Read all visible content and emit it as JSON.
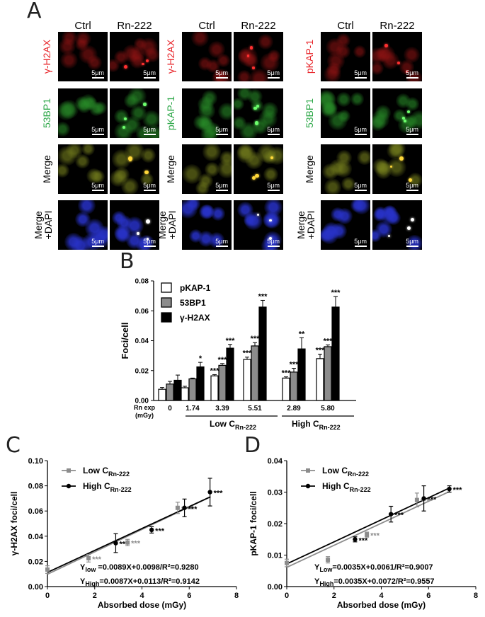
{
  "panelA": {
    "letter": "A",
    "col_ctrl": "Ctrl",
    "col_rn": "Rn-222",
    "scale_label": "5μm",
    "groups": [
      {
        "rows": [
          {
            "label": "γ-H2AX",
            "color": "#e8252a"
          },
          {
            "label": "53BP1",
            "color": "#2fa84a"
          },
          {
            "label": "Merge",
            "color": "#000000"
          },
          {
            "label": "Merge+DAPI",
            "l1": "Merge",
            "l2": "+DAPI",
            "color": "#000000"
          }
        ]
      },
      {
        "rows": [
          {
            "label": "γ-H2AX",
            "color": "#e8252a"
          },
          {
            "label": "pKAP-1",
            "color": "#2fa84a"
          },
          {
            "label": "Merge",
            "color": "#000000"
          },
          {
            "label": "Merge+DAPI",
            "l1": "Merge",
            "l2": "+DAPI",
            "color": "#000000"
          }
        ]
      },
      {
        "rows": [
          {
            "label": "pKAP-1",
            "color": "#e8252a"
          },
          {
            "label": "53BP1",
            "color": "#2fa84a"
          },
          {
            "label": "Merge",
            "color": "#000000"
          },
          {
            "label": "Merge+DAPI",
            "l1": "Merge",
            "l2": "+DAPI",
            "color": "#000000"
          }
        ]
      }
    ]
  },
  "panelB": {
    "letter": "B",
    "legend": [
      "pKAP-1",
      "53BP1",
      "γ-H2AX"
    ],
    "rn_exp_label_1": "Rn exp",
    "rn_exp_label_2": "(mGy)",
    "low_group": "Low C",
    "high_group": "High C",
    "group_sub": "Rn-222"
  },
  "panelC": {
    "letter": "C",
    "legend_low": "Low C",
    "legend_high": "High C",
    "legend_sub": "Rn-222",
    "eq_low_prefix": "Y",
    "eq_low_sub": "low",
    "eq_low": " =0.0089X+0.0098/R²=0.9280",
    "eq_high_prefix": "Y",
    "eq_high_sub": "High",
    "eq_high": "=0.0087X+0.0113/R²=0.9142"
  },
  "panelD": {
    "letter": "D",
    "legend_low": "Low C",
    "legend_high": "High C",
    "legend_sub": "Rn-222",
    "eq_low_prefix": "Y",
    "eq_low_sub": "Low",
    "eq_low": "=0.0035X+0.0061/R²=0.9007",
    "eq_high_prefix": "Y",
    "eq_high_sub": "High",
    "eq_high": "=0.0035X+0.0072/R²=0.9557"
  },
  "chart_data": [
    {
      "type": "bar",
      "ylabel": "Foci/cell",
      "ylim": [
        0,
        0.08
      ],
      "yticks": [
        "0.00",
        "0.02",
        "0.04",
        "0.06",
        "0.08"
      ],
      "categories": [
        "0",
        "1.74",
        "3.39",
        "5.51",
        "2.89",
        "5.80"
      ],
      "series": [
        {
          "name": "pKAP-1",
          "color": "#ffffff",
          "values": [
            0.0075,
            0.0085,
            0.0165,
            0.0275,
            0.015,
            0.028
          ],
          "errors": [
            0.0012,
            0.001,
            0.0008,
            0.0015,
            0.0008,
            0.003
          ],
          "sig": [
            "",
            "",
            "***",
            "***",
            "***",
            "***"
          ]
        },
        {
          "name": "53BP1",
          "color": "#8c8c8c",
          "values": [
            0.011,
            0.0145,
            0.0235,
            0.0365,
            0.019,
            0.036
          ],
          "errors": [
            0.0018,
            0.0005,
            0.0012,
            0.0022,
            0.0025,
            0.0012
          ],
          "sig": [
            "",
            "",
            "***",
            "***",
            "***",
            "***"
          ]
        },
        {
          "name": "γ-H2AX",
          "color": "#000000",
          "values": [
            0.0135,
            0.0225,
            0.035,
            0.0625,
            0.0345,
            0.0625
          ],
          "errors": [
            0.0035,
            0.003,
            0.0025,
            0.0045,
            0.0075,
            0.007
          ],
          "sig": [
            "",
            "*",
            "***",
            "***",
            "**",
            "***"
          ]
        }
      ]
    },
    {
      "type": "scatter",
      "ylabel": "γ-H2AX foci/cell",
      "xlabel": "Absorbed dose (mGy)",
      "xlim": [
        0,
        8
      ],
      "ylim": [
        0,
        0.1
      ],
      "xticks": [
        "0",
        "2",
        "4",
        "6",
        "8"
      ],
      "yticks": [
        "0.00",
        "0.02",
        "0.04",
        "0.06",
        "0.08",
        "0.10"
      ],
      "series": [
        {
          "name": "Low C Rn-222",
          "color": "#8c8c8c",
          "x": [
            0,
            1.74,
            3.39,
            5.51
          ],
          "y": [
            0.0135,
            0.0225,
            0.035,
            0.0625
          ],
          "err": [
            0.003,
            0.003,
            0.0025,
            0.0045
          ],
          "sig": [
            "",
            "***",
            "***",
            "****"
          ]
        },
        {
          "name": "High C Rn-222",
          "color": "#000000",
          "x": [
            2.89,
            4.41,
            5.8,
            6.88
          ],
          "y": [
            0.0345,
            0.045,
            0.0625,
            0.075
          ],
          "err": [
            0.0075,
            0.0025,
            0.007,
            0.011
          ],
          "sig": [
            "**",
            "***",
            "***",
            "***"
          ]
        }
      ],
      "fits": [
        {
          "slope": 0.0089,
          "intercept": 0.0098,
          "color": "#8c8c8c"
        },
        {
          "slope": 0.0087,
          "intercept": 0.0113,
          "color": "#000000"
        }
      ]
    },
    {
      "type": "scatter",
      "ylabel": "pKAP-1 foci/cell",
      "xlabel": "Absorbed dose (mGy)",
      "xlim": [
        0,
        8
      ],
      "ylim": [
        0,
        0.04
      ],
      "xticks": [
        "0",
        "2",
        "4",
        "6",
        "8"
      ],
      "yticks": [
        "0.00",
        "0.01",
        "0.02",
        "0.03",
        "0.04"
      ],
      "series": [
        {
          "name": "Low C Rn-222",
          "color": "#8c8c8c",
          "x": [
            0,
            1.74,
            3.39,
            5.51
          ],
          "y": [
            0.0075,
            0.0085,
            0.0165,
            0.0275
          ],
          "err": [
            0.0012,
            0.001,
            0.0008,
            0.0022
          ],
          "sig": [
            "",
            "",
            "***",
            "****"
          ]
        },
        {
          "name": "High C Rn-222",
          "color": "#000000",
          "x": [
            2.89,
            4.41,
            5.8,
            6.88
          ],
          "y": [
            0.015,
            0.023,
            0.028,
            0.031
          ],
          "err": [
            0.0008,
            0.0025,
            0.004,
            0.001
          ],
          "sig": [
            "***",
            "***",
            "***",
            "***"
          ]
        }
      ],
      "fits": [
        {
          "slope": 0.0035,
          "intercept": 0.0061,
          "color": "#8c8c8c"
        },
        {
          "slope": 0.0035,
          "intercept": 0.0072,
          "color": "#000000"
        }
      ]
    }
  ]
}
